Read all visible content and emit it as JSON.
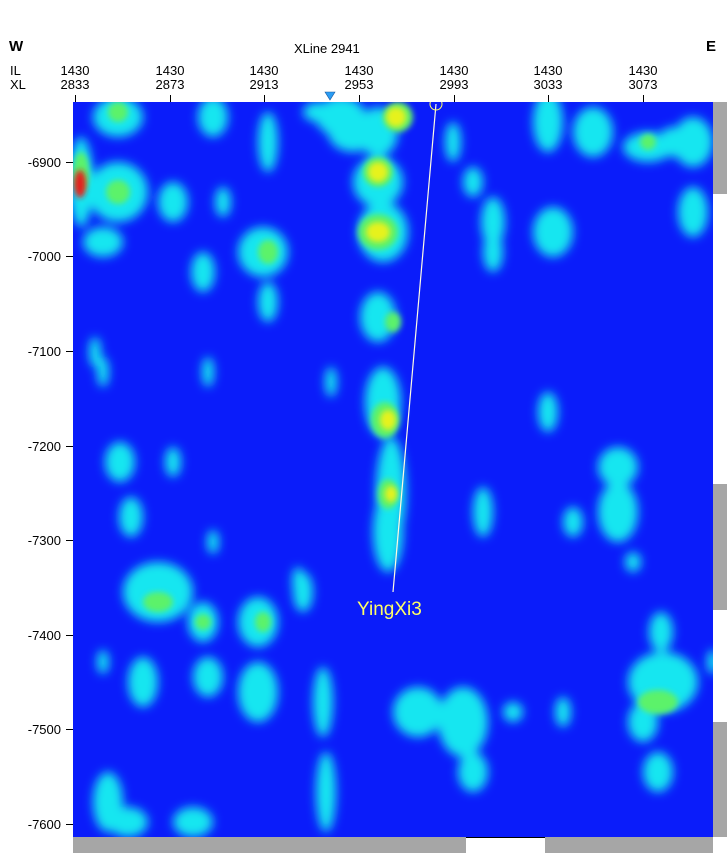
{
  "header": {
    "west_label": "W",
    "east_label": "E",
    "section_title": "XLine 2941",
    "row_label_il": "IL",
    "row_label_xl": "XL"
  },
  "top_axis": {
    "ticks": [
      {
        "il": "1430",
        "xl": "2833"
      },
      {
        "il": "1430",
        "xl": "2873"
      },
      {
        "il": "1430",
        "xl": "2913"
      },
      {
        "il": "1430",
        "xl": "2953"
      },
      {
        "il": "1430",
        "xl": "2993"
      },
      {
        "il": "1430",
        "xl": "3033"
      },
      {
        "il": "1430",
        "xl": "3073"
      }
    ]
  },
  "depth_axis": {
    "ticks": [
      "-6900",
      "-7000",
      "-7100",
      "-7200",
      "-7300",
      "-7400",
      "-7500",
      "-7600"
    ]
  },
  "well": {
    "name": "YingXi3",
    "color": "#ffff66"
  },
  "colors": {
    "background": "#0a1cfa",
    "cyan": "#19e6f0",
    "green": "#5cf26a",
    "yellow": "#e6f21a",
    "red": "#e61a1a",
    "marker": "#2a9df4"
  }
}
